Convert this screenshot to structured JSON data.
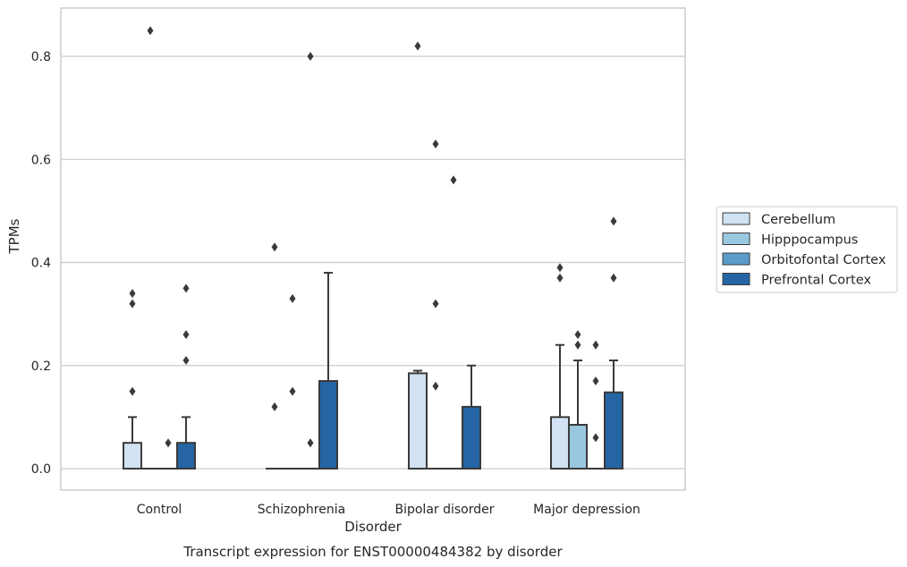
{
  "colors": {
    "Cerebellum": "#d1e2f2",
    "Hipppocampus": "#9ac7e0",
    "Orbitofontal Cortex": "#5a9cc9",
    "Prefrontal Cortex": "#2565a4",
    "edge": "#3a3a3a",
    "grid": "#cccccc"
  },
  "chart_data": {
    "type": "box",
    "title": "Transcript expression for ENST00000484382 by disorder",
    "xlabel": "Disorder",
    "ylabel": "TPMs",
    "ylim": [
      -0.04,
      0.895
    ],
    "yticks": [
      0.0,
      0.2,
      0.4,
      0.6,
      0.8
    ],
    "ytick_labels": [
      "0.0",
      "0.2",
      "0.4",
      "0.6",
      "0.8"
    ],
    "categories": [
      "Control",
      "Schizophrenia",
      "Bipolar disorder",
      "Major depression"
    ],
    "grid": "horizontal",
    "legend_position": "right",
    "series": [
      {
        "name": "Cerebellum",
        "boxes": [
          {
            "q1": 0.0,
            "median": 0.0,
            "q3": 0.05,
            "whisker_low": 0.0,
            "whisker_high": 0.1,
            "outliers": [
              0.15,
              0.32,
              0.34
            ]
          },
          {
            "q1": 0.0,
            "median": 0.0,
            "q3": 0.0,
            "whisker_low": 0.0,
            "whisker_high": 0.0,
            "outliers": [
              0.12,
              0.43
            ]
          },
          {
            "q1": 0.0,
            "median": 0.0,
            "q3": 0.185,
            "whisker_low": 0.0,
            "whisker_high": 0.19,
            "outliers": [
              0.82
            ]
          },
          {
            "q1": 0.0,
            "median": 0.0,
            "q3": 0.1,
            "whisker_low": 0.0,
            "whisker_high": 0.24,
            "outliers": [
              0.37,
              0.39
            ]
          }
        ]
      },
      {
        "name": "Hipppocampus",
        "boxes": [
          {
            "q1": 0.0,
            "median": 0.0,
            "q3": 0.0,
            "whisker_low": 0.0,
            "whisker_high": 0.0,
            "outliers": [
              0.85
            ]
          },
          {
            "q1": 0.0,
            "median": 0.0,
            "q3": 0.0,
            "whisker_low": 0.0,
            "whisker_high": 0.0,
            "outliers": [
              0.15,
              0.33
            ]
          },
          {
            "q1": 0.0,
            "median": 0.0,
            "q3": 0.0,
            "whisker_low": 0.0,
            "whisker_high": 0.0,
            "outliers": [
              0.16,
              0.32,
              0.63
            ]
          },
          {
            "q1": 0.0,
            "median": 0.0,
            "q3": 0.085,
            "whisker_low": 0.0,
            "whisker_high": 0.21,
            "outliers": [
              0.24,
              0.26
            ]
          }
        ]
      },
      {
        "name": "Orbitofontal Cortex",
        "boxes": [
          {
            "q1": 0.0,
            "median": 0.0,
            "q3": 0.0,
            "whisker_low": 0.0,
            "whisker_high": 0.0,
            "outliers": [
              0.05
            ]
          },
          {
            "q1": 0.0,
            "median": 0.0,
            "q3": 0.0,
            "whisker_low": 0.0,
            "whisker_high": 0.0,
            "outliers": [
              0.05,
              0.8
            ]
          },
          {
            "q1": 0.0,
            "median": 0.0,
            "q3": 0.0,
            "whisker_low": 0.0,
            "whisker_high": 0.0,
            "outliers": [
              0.56
            ]
          },
          {
            "q1": 0.0,
            "median": 0.0,
            "q3": 0.0,
            "whisker_low": 0.0,
            "whisker_high": 0.0,
            "outliers": [
              0.06,
              0.17,
              0.24
            ]
          }
        ]
      },
      {
        "name": "Prefrontal Cortex",
        "boxes": [
          {
            "q1": 0.0,
            "median": 0.0,
            "q3": 0.05,
            "whisker_low": 0.0,
            "whisker_high": 0.1,
            "outliers": [
              0.21,
              0.26,
              0.35
            ]
          },
          {
            "q1": 0.0,
            "median": 0.0,
            "q3": 0.17,
            "whisker_low": 0.0,
            "whisker_high": 0.38,
            "outliers": []
          },
          {
            "q1": 0.0,
            "median": 0.0,
            "q3": 0.12,
            "whisker_low": 0.0,
            "whisker_high": 0.2,
            "outliers": []
          },
          {
            "q1": 0.0,
            "median": 0.0,
            "q3": 0.148,
            "whisker_low": 0.0,
            "whisker_high": 0.21,
            "outliers": [
              0.37,
              0.48
            ]
          }
        ]
      }
    ]
  }
}
